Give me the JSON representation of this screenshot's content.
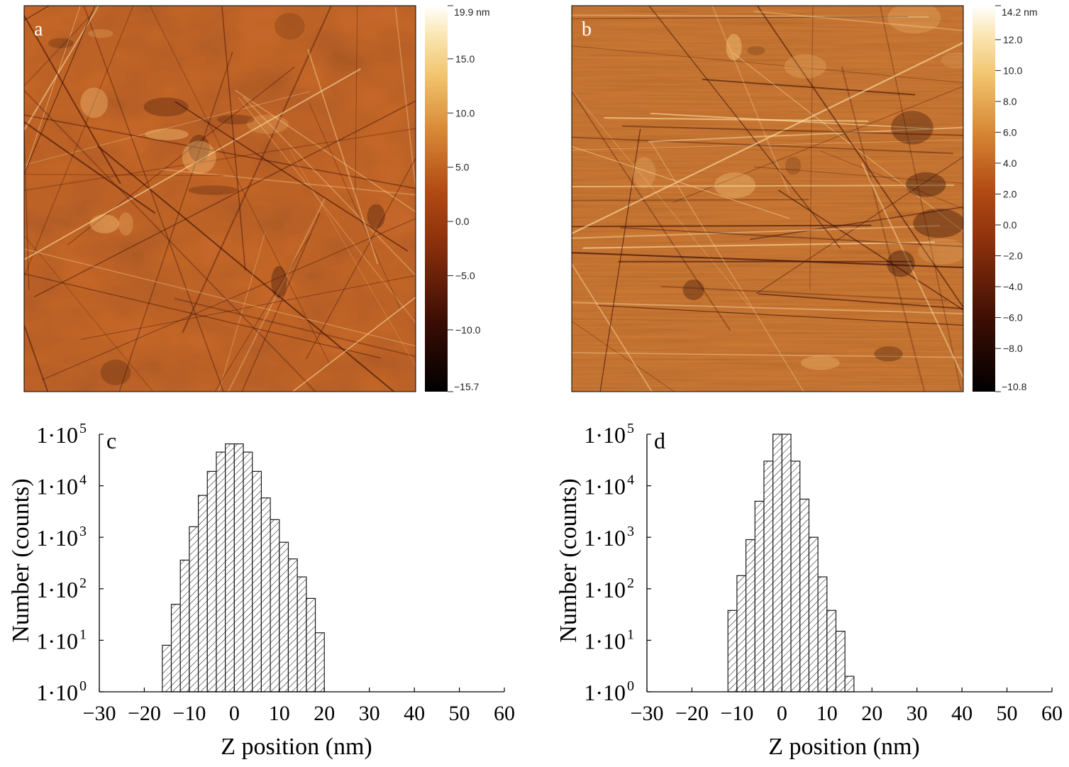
{
  "chart_data": [
    {
      "type": "heatmap",
      "panel_label": "a",
      "colorbar": {
        "max_label": "19.9 nm",
        "min_label": "−15.7",
        "range": [
          -15.7,
          19.9
        ],
        "ticks": [
          15.0,
          10.0,
          5.0,
          0.0,
          -5.0,
          -10.0
        ],
        "tick_labels": [
          "15.0",
          "10.0",
          "5.0",
          "0.0",
          "−5.0",
          "−10.0"
        ]
      }
    },
    {
      "type": "heatmap",
      "panel_label": "b",
      "colorbar": {
        "max_label": "14.2 nm",
        "min_label": "−10.8",
        "range": [
          -10.8,
          14.2
        ],
        "ticks": [
          12.0,
          10.0,
          8.0,
          6.0,
          4.0,
          2.0,
          0.0,
          -2.0,
          -4.0,
          -6.0,
          -8.0
        ],
        "tick_labels": [
          "12.0",
          "10.0",
          "8.0",
          "6.0",
          "4.0",
          "2.0",
          "0.0",
          "−2.0",
          "−4.0",
          "−6.0",
          "−8.0"
        ]
      }
    },
    {
      "type": "bar",
      "panel_label": "c",
      "xlabel": "Z position (nm)",
      "ylabel": "Number (counts)",
      "xlim": [
        -30,
        60
      ],
      "ylim": [
        1,
        100000
      ],
      "y_scale": "log",
      "x_ticks": [
        -30,
        -20,
        -10,
        0,
        10,
        20,
        30,
        40,
        50,
        60
      ],
      "x_tick_labels": [
        "−30",
        "−20",
        "−10",
        "0",
        "10",
        "20",
        "30",
        "40",
        "50",
        "60"
      ],
      "y_tick_labels": [
        {
          "base": "1·10",
          "exp": "0",
          "value": 1
        },
        {
          "base": "1·10",
          "exp": "1",
          "value": 10
        },
        {
          "base": "1·10",
          "exp": "2",
          "value": 100
        },
        {
          "base": "1·10",
          "exp": "3",
          "value": 1000
        },
        {
          "base": "1·10",
          "exp": "4",
          "value": 10000
        },
        {
          "base": "1·10",
          "exp": "5",
          "value": 100000
        }
      ],
      "bin_width": 2,
      "bin_start": -16,
      "values": [
        8,
        50,
        360,
        1600,
        6500,
        19000,
        45000,
        65000,
        65000,
        45000,
        19000,
        5800,
        2200,
        800,
        380,
        170,
        65,
        14
      ]
    },
    {
      "type": "bar",
      "panel_label": "d",
      "xlabel": "Z position (nm)",
      "ylabel": "Number (counts)",
      "xlim": [
        -30,
        60
      ],
      "ylim": [
        1,
        100000
      ],
      "y_scale": "log",
      "x_ticks": [
        -30,
        -20,
        -10,
        0,
        10,
        20,
        30,
        40,
        50,
        60
      ],
      "x_tick_labels": [
        "−30",
        "−20",
        "−10",
        "0",
        "10",
        "20",
        "30",
        "40",
        "50",
        "60"
      ],
      "y_tick_labels": [
        {
          "base": "1·10",
          "exp": "0",
          "value": 1
        },
        {
          "base": "1·10",
          "exp": "1",
          "value": 10
        },
        {
          "base": "1·10",
          "exp": "2",
          "value": 100
        },
        {
          "base": "1·10",
          "exp": "3",
          "value": 1000
        },
        {
          "base": "1·10",
          "exp": "4",
          "value": 10000
        },
        {
          "base": "1·10",
          "exp": "5",
          "value": 100000
        }
      ],
      "bin_width": 2,
      "bin_start": -12,
      "values": [
        38,
        180,
        900,
        5000,
        30000,
        100000,
        100000,
        30000,
        5500,
        1000,
        170,
        38,
        15,
        2
      ]
    }
  ],
  "colors": {
    "afm_low": "#000000",
    "afm_mid": "#b24a14",
    "afm_high": "#ffffff",
    "bar_hatch": "#1a1a1a"
  }
}
